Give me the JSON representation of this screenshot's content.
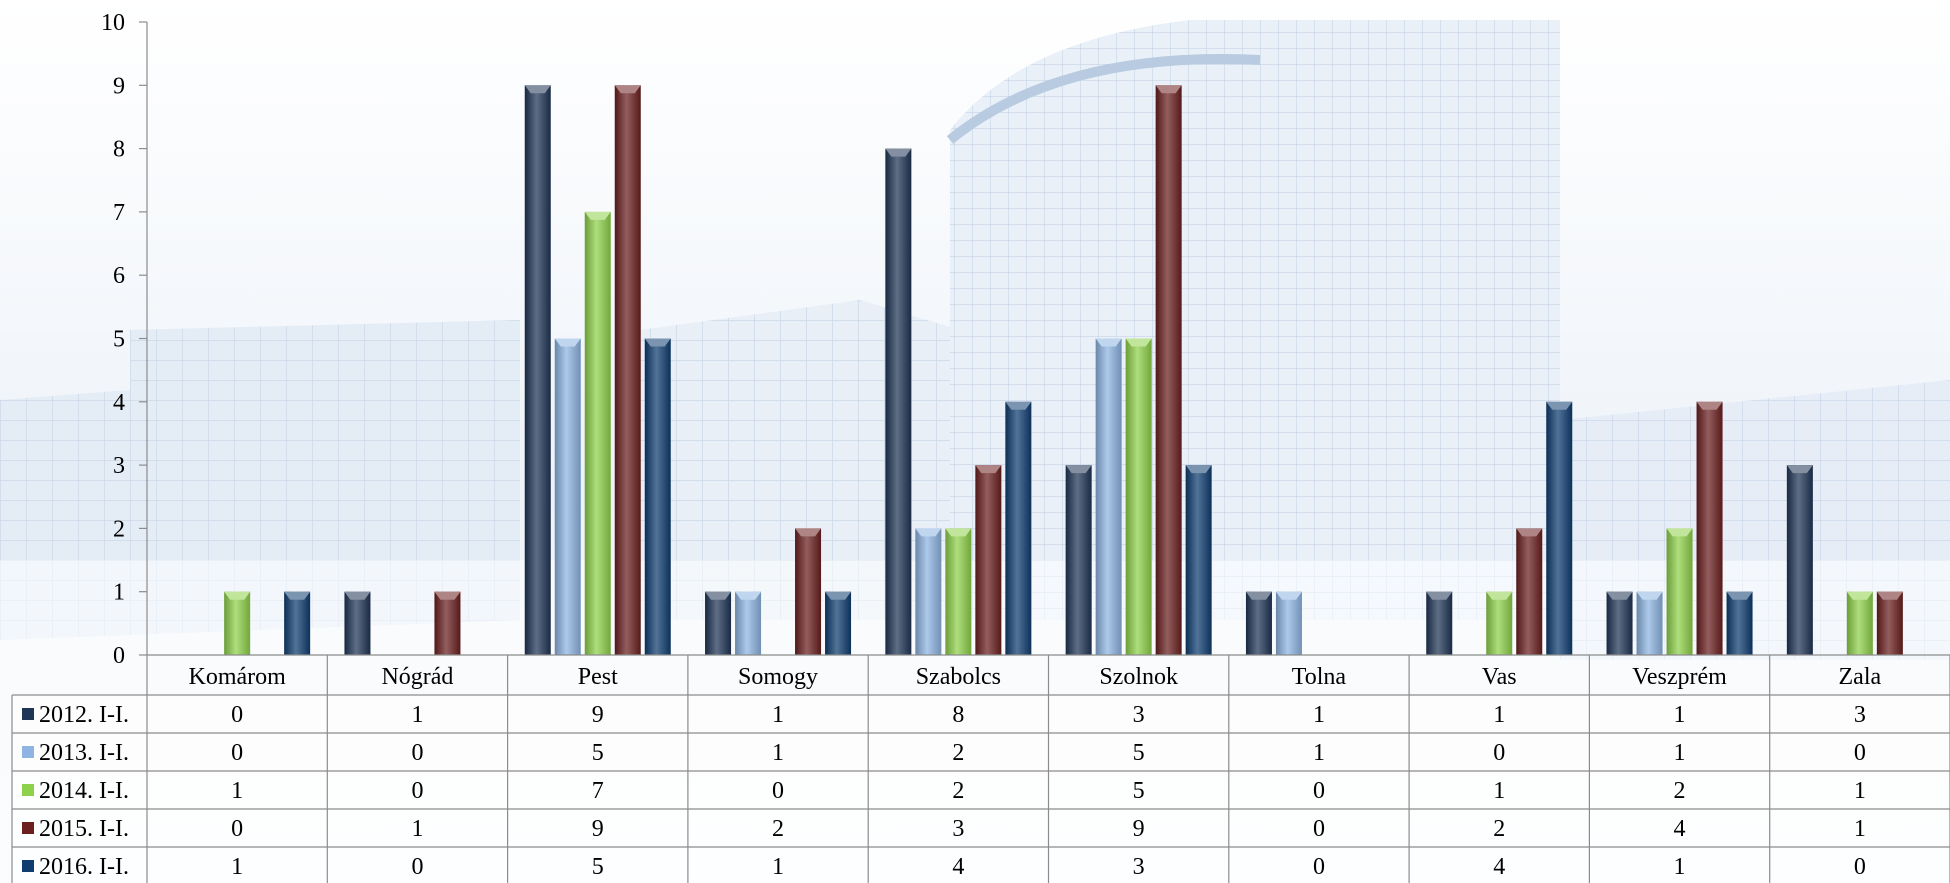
{
  "chart_data": {
    "type": "bar",
    "title": "",
    "xlabel": "",
    "ylabel": "",
    "ylim": [
      0,
      10
    ],
    "yticks": [
      0,
      1,
      2,
      3,
      4,
      5,
      6,
      7,
      8,
      9,
      10
    ],
    "grid": false,
    "legend": "data-table-left",
    "categories": [
      "Komárom",
      "Nógrád",
      "Pest",
      "Somogy",
      "Szabolcs",
      "Szolnok",
      "Tolna",
      "Vas",
      "Veszprém",
      "Zala"
    ],
    "series": [
      {
        "name": "2012. I-I.",
        "color": "#1f3556",
        "values": [
          0,
          1,
          9,
          1,
          8,
          3,
          1,
          1,
          1,
          3
        ]
      },
      {
        "name": "2013. I-I.",
        "color": "#8db4e2",
        "values": [
          0,
          0,
          5,
          1,
          2,
          5,
          1,
          0,
          1,
          0
        ]
      },
      {
        "name": "2014. I-I.",
        "color": "#8ed14a",
        "values": [
          1,
          0,
          7,
          0,
          2,
          5,
          0,
          1,
          2,
          1
        ]
      },
      {
        "name": "2015. I-I.",
        "color": "#6b1f1f",
        "values": [
          0,
          1,
          9,
          2,
          3,
          9,
          0,
          2,
          4,
          1
        ]
      },
      {
        "name": "2016. I-I.",
        "color": "#0f3d70",
        "values": [
          1,
          0,
          5,
          1,
          4,
          3,
          0,
          4,
          1,
          0
        ]
      }
    ]
  }
}
